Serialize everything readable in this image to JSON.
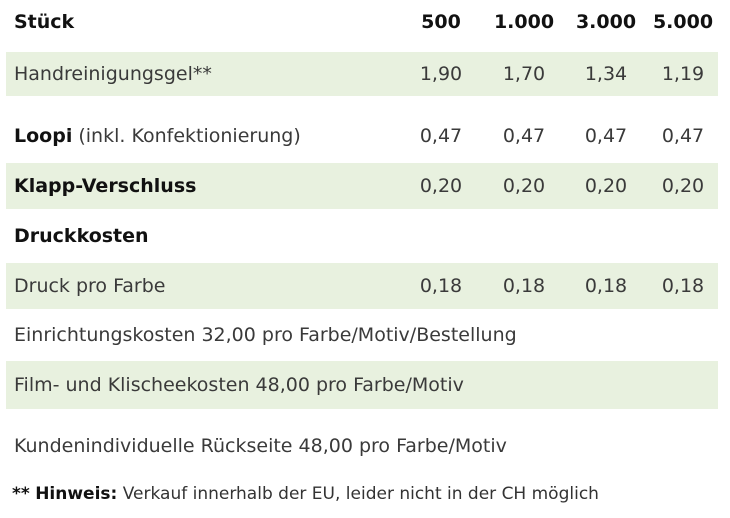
{
  "header": {
    "label": "Stück",
    "quantities": [
      "500",
      "1.000",
      "3.000",
      "5.000"
    ]
  },
  "rows": [
    {
      "label": "Handreinigungsgel**",
      "values": [
        "1,90",
        "1,70",
        "1,34",
        "1,19"
      ]
    },
    {
      "label_bold": "Loopi",
      "label_light": " (inkl. Konfektionierung)",
      "values": [
        "0,47",
        "0,47",
        "0,47",
        "0,47"
      ]
    },
    {
      "label_bold": "Klapp-Verschluss",
      "values": [
        "0,20",
        "0,20",
        "0,20",
        "0,20"
      ]
    },
    {
      "label_bold": "Druckkosten"
    },
    {
      "label": "Druck pro Farbe",
      "values": [
        "0,18",
        "0,18",
        "0,18",
        "0,18"
      ]
    },
    {
      "label": "Einrichtungskosten 32,00 pro Farbe/Motiv/Bestellung"
    },
    {
      "label": "Film- und Klischeekosten 48,00 pro Farbe/Motiv"
    },
    {
      "label": "Kundenindividuelle Rückseite 48,00 pro Farbe/Motiv"
    }
  ],
  "footnote": {
    "marker": "**",
    "title": "Hinweis:",
    "text": " Verkauf innerhalb der EU, leider nicht in der CH möglich"
  }
}
